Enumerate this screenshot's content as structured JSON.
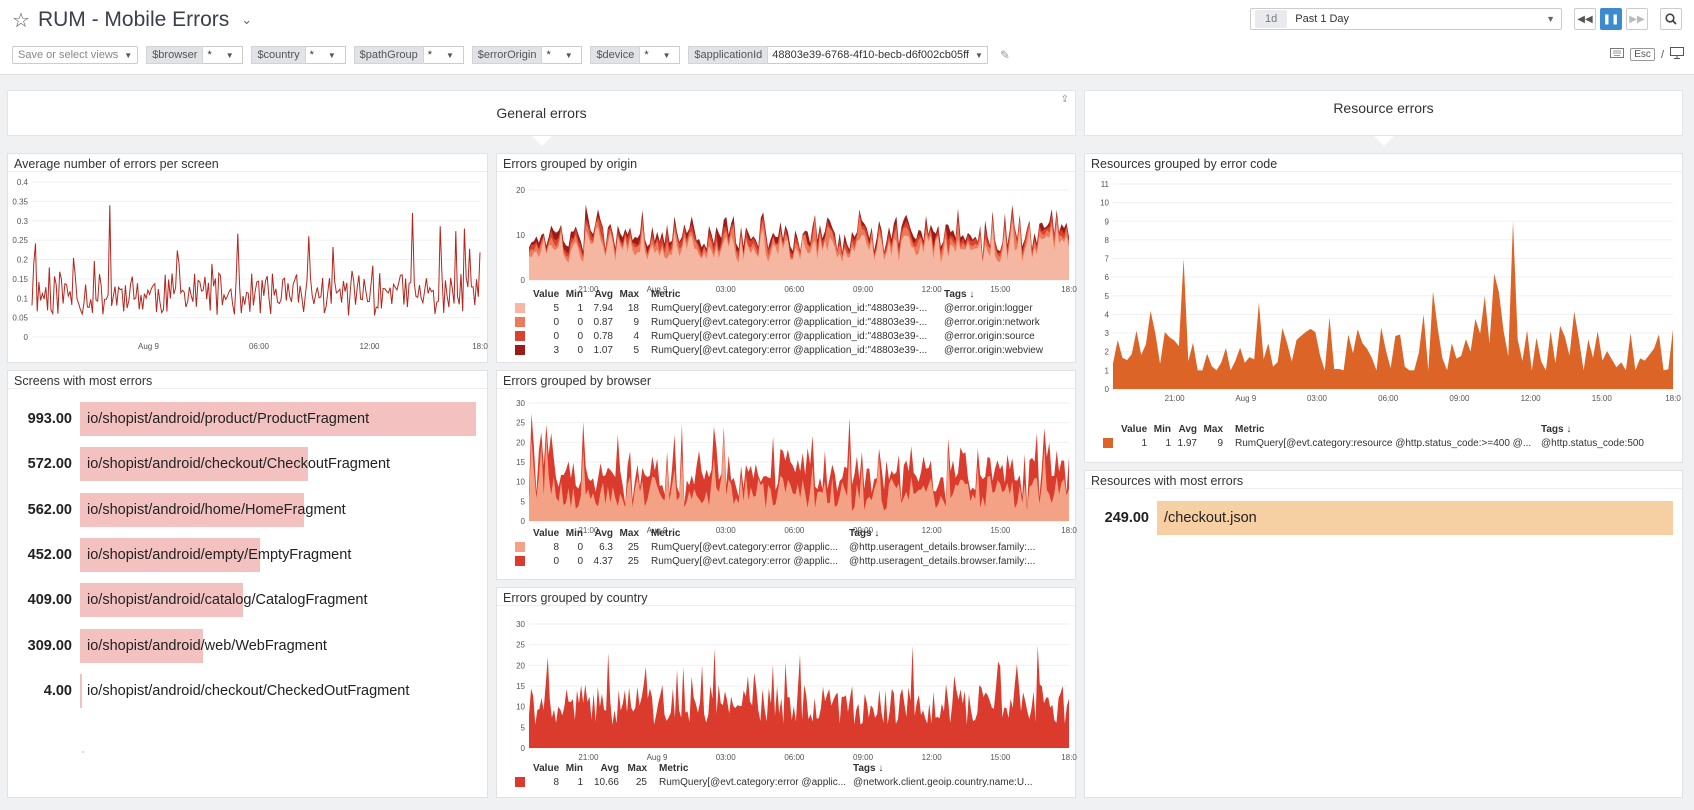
{
  "header": {
    "title": "RUM - Mobile Errors",
    "time_badge": "1d",
    "time_label": "Past 1 Day",
    "views_placeholder": "Save or select views",
    "template_vars": [
      {
        "name": "$browser",
        "value": "*"
      },
      {
        "name": "$country",
        "value": "*"
      },
      {
        "name": "$pathGroup",
        "value": "*"
      },
      {
        "name": "$errorOrigin",
        "value": "*"
      },
      {
        "name": "$device",
        "value": "*"
      },
      {
        "name": "$applicationId",
        "value": "48803e39-6768-4f10-becb-d6f002cb05ff"
      }
    ],
    "esc_label": "Esc",
    "slash_label": "/"
  },
  "groups": {
    "general": "General errors",
    "resource": "Resource errors"
  },
  "x_ticks": [
    "21:00",
    "Aug 9",
    "03:00",
    "06:00",
    "09:00",
    "12:00",
    "15:00",
    "18:0"
  ],
  "avg_x_ticks": [
    "Aug 9",
    "06:00",
    "12:00",
    "18:0"
  ],
  "widgets": {
    "avg_errors": {
      "title": "Average number of errors per screen",
      "y_ticks": [
        "0.4",
        "0.35",
        "0.3",
        "0.25",
        "0.2",
        "0.15",
        "0.1",
        "0.05",
        "0"
      ],
      "color": "#b3261e"
    },
    "by_origin": {
      "title": "Errors grouped by origin",
      "y_ticks": [
        "20",
        "10",
        "0"
      ],
      "legend_head": {
        "value": "Value",
        "min": "Min",
        "avg": "Avg",
        "max": "Max",
        "metric": "Metric",
        "tags": "Tags ↓"
      },
      "rows": [
        {
          "color": "#f5b7a2",
          "value": "5",
          "min": "1",
          "avg": "7.94",
          "max": "18",
          "metric": "RumQuery[@evt.category:error @application_id:\"48803e39-...",
          "tags": "@error.origin:logger"
        },
        {
          "color": "#ec7b5c",
          "value": "0",
          "min": "0",
          "avg": "0.87",
          "max": "9",
          "metric": "RumQuery[@evt.category:error @application_id:\"48803e39-...",
          "tags": "@error.origin:network"
        },
        {
          "color": "#d9422e",
          "value": "0",
          "min": "0",
          "avg": "0.78",
          "max": "4",
          "metric": "RumQuery[@evt.category:error @application_id:\"48803e39-...",
          "tags": "@error.origin:source"
        },
        {
          "color": "#9c1b17",
          "value": "3",
          "min": "0",
          "avg": "1.07",
          "max": "5",
          "metric": "RumQuery[@evt.category:error @application_id:\"48803e39-...",
          "tags": "@error.origin:webview"
        }
      ]
    },
    "by_browser": {
      "title": "Errors grouped by browser",
      "y_ticks": [
        "30",
        "25",
        "20",
        "15",
        "10",
        "5",
        "0"
      ],
      "legend_head": {
        "value": "Value",
        "min": "Min",
        "avg": "Avg",
        "max": "Max",
        "metric": "Metric",
        "tags": "Tags ↓"
      },
      "rows": [
        {
          "color": "#f4a285",
          "value": "8",
          "min": "0",
          "avg": "6.3",
          "max": "25",
          "metric": "RumQuery[@evt.category:error @applic...",
          "tags": "@http.useragent_details.browser.family:..."
        },
        {
          "color": "#db3b2c",
          "value": "0",
          "min": "0",
          "avg": "4.37",
          "max": "25",
          "metric": "RumQuery[@evt.category:error @applic...",
          "tags": "@http.useragent_details.browser.family:..."
        }
      ]
    },
    "by_country": {
      "title": "Errors grouped by country",
      "y_ticks": [
        "30",
        "25",
        "20",
        "15",
        "10",
        "5",
        "0"
      ],
      "legend_head": {
        "value": "Value",
        "min": "Min",
        "avg": "Avg",
        "max": "Max",
        "metric": "Metric",
        "tags": "Tags ↓"
      },
      "rows": [
        {
          "color": "#db3b2c",
          "value": "8",
          "min": "1",
          "avg": "10.66",
          "max": "25",
          "metric": "RumQuery[@evt.category:error @applic...",
          "tags": "@network.client.geoip.country.name:U..."
        }
      ]
    },
    "screens": {
      "title": "Screens with most errors",
      "bar_color": "#f3c2c0",
      "items": [
        {
          "value": "993.00",
          "num": 993,
          "label": "io/shopist/android/product/ProductFragment"
        },
        {
          "value": "572.00",
          "num": 572,
          "label": "io/shopist/android/checkout/CheckoutFragment"
        },
        {
          "value": "562.00",
          "num": 562,
          "label": "io/shopist/android/home/HomeFragment"
        },
        {
          "value": "452.00",
          "num": 452,
          "label": "io/shopist/android/empty/EmptyFragment"
        },
        {
          "value": "409.00",
          "num": 409,
          "label": "io/shopist/android/catalog/CatalogFragment"
        },
        {
          "value": "309.00",
          "num": 309,
          "label": "io/shopist/android/web/WebFragment"
        },
        {
          "value": "4.00",
          "num": 4,
          "label": "io/shopist/android/checkout/CheckedOutFragment"
        }
      ]
    },
    "resources_code": {
      "title": "Resources grouped by error code",
      "y_ticks": [
        "11",
        "10",
        "9",
        "8",
        "7",
        "6",
        "5",
        "4",
        "3",
        "2",
        "1",
        "0"
      ],
      "legend_head": {
        "value": "Value",
        "min": "Min",
        "avg": "Avg",
        "max": "Max",
        "metric": "Metric",
        "tags": "Tags ↓"
      },
      "rows": [
        {
          "color": "#dc6426",
          "value": "1",
          "min": "1",
          "avg": "1.97",
          "max": "9",
          "metric": "RumQuery[@evt.category:resource @http.status_code:>=400 @...",
          "tags": "@http.status_code:500"
        }
      ]
    },
    "resources_most": {
      "title": "Resources with most errors",
      "bar_color": "#f6cfa2",
      "items": [
        {
          "value": "249.00",
          "num": 249,
          "label": "/checkout.json"
        }
      ]
    }
  }
}
